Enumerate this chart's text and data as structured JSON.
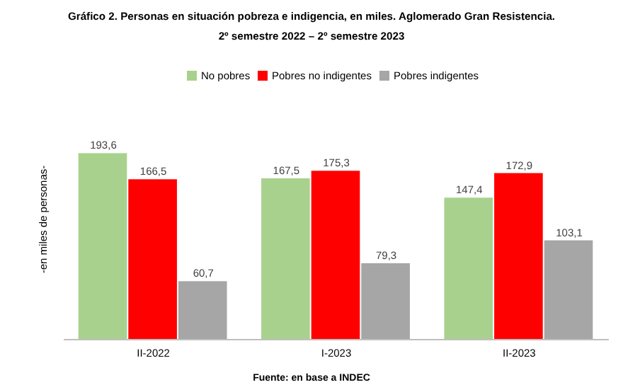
{
  "chart_data": {
    "type": "bar",
    "title": "Gráfico 2. Personas en situación pobreza e indigencia, en miles. Aglomerado Gran Resistencia.",
    "subtitle": "2º semestre 2022 – 2º semestre 2023",
    "ylabel": "-en miles de personas-",
    "categories": [
      "II-2022",
      "I-2023",
      "II-2023"
    ],
    "series": [
      {
        "name": "No pobres",
        "color": "#a9d18e",
        "values": [
          193.6,
          167.5,
          147.4
        ],
        "value_labels": [
          "193,6",
          "167,5",
          "147,4"
        ]
      },
      {
        "name": "Pobres no indigentes",
        "color": "#ff0000",
        "values": [
          166.5,
          175.3,
          172.9
        ],
        "value_labels": [
          "166,5",
          "175,3",
          "172,9"
        ]
      },
      {
        "name": "Pobres indigentes",
        "color": "#a6a6a6",
        "values": [
          60.7,
          79.3,
          103.1
        ],
        "value_labels": [
          "60,7",
          "79,3",
          "103,1"
        ]
      }
    ],
    "tick_labels": "x",
    "legend": "top",
    "annotations": [
      "Fuente: en base a INDEC"
    ]
  }
}
